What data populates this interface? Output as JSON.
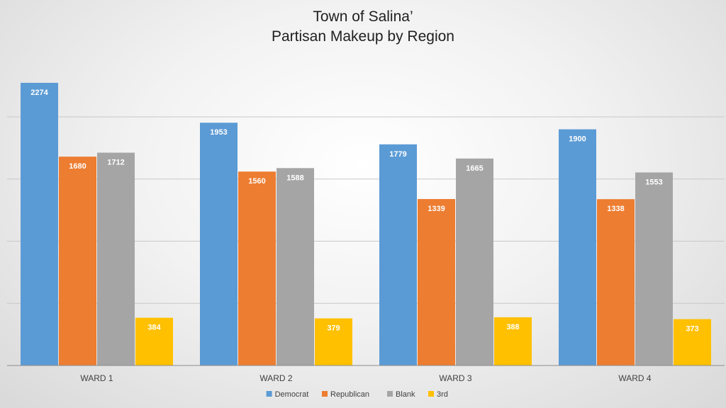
{
  "chart_data": {
    "type": "bar",
    "title": [
      "Town of Salina’",
      "Partisan  Makeup by Region"
    ],
    "xlabel": "",
    "ylabel": "",
    "categories": [
      "WARD 1",
      "WARD 2",
      "WARD 3",
      "WARD 4"
    ],
    "series": [
      {
        "name": "Democrat",
        "color": "#5b9bd5",
        "values": [
          2274,
          1953,
          1779,
          1900
        ]
      },
      {
        "name": "Republican",
        "color": "#ed7d31",
        "values": [
          1680,
          1560,
          1339,
          1338
        ]
      },
      {
        "name": "Blank",
        "color": "#a5a5a5",
        "values": [
          1712,
          1588,
          1665,
          1553
        ]
      },
      {
        "name": "3rd",
        "color": "#ffc000",
        "values": [
          384,
          379,
          388,
          373
        ]
      }
    ],
    "ylim": [
      0,
      2500
    ],
    "gridline_interval": 500,
    "y_tick_labels_shown": false,
    "data_labels": true,
    "grid": true,
    "legend_position": "bottom"
  }
}
